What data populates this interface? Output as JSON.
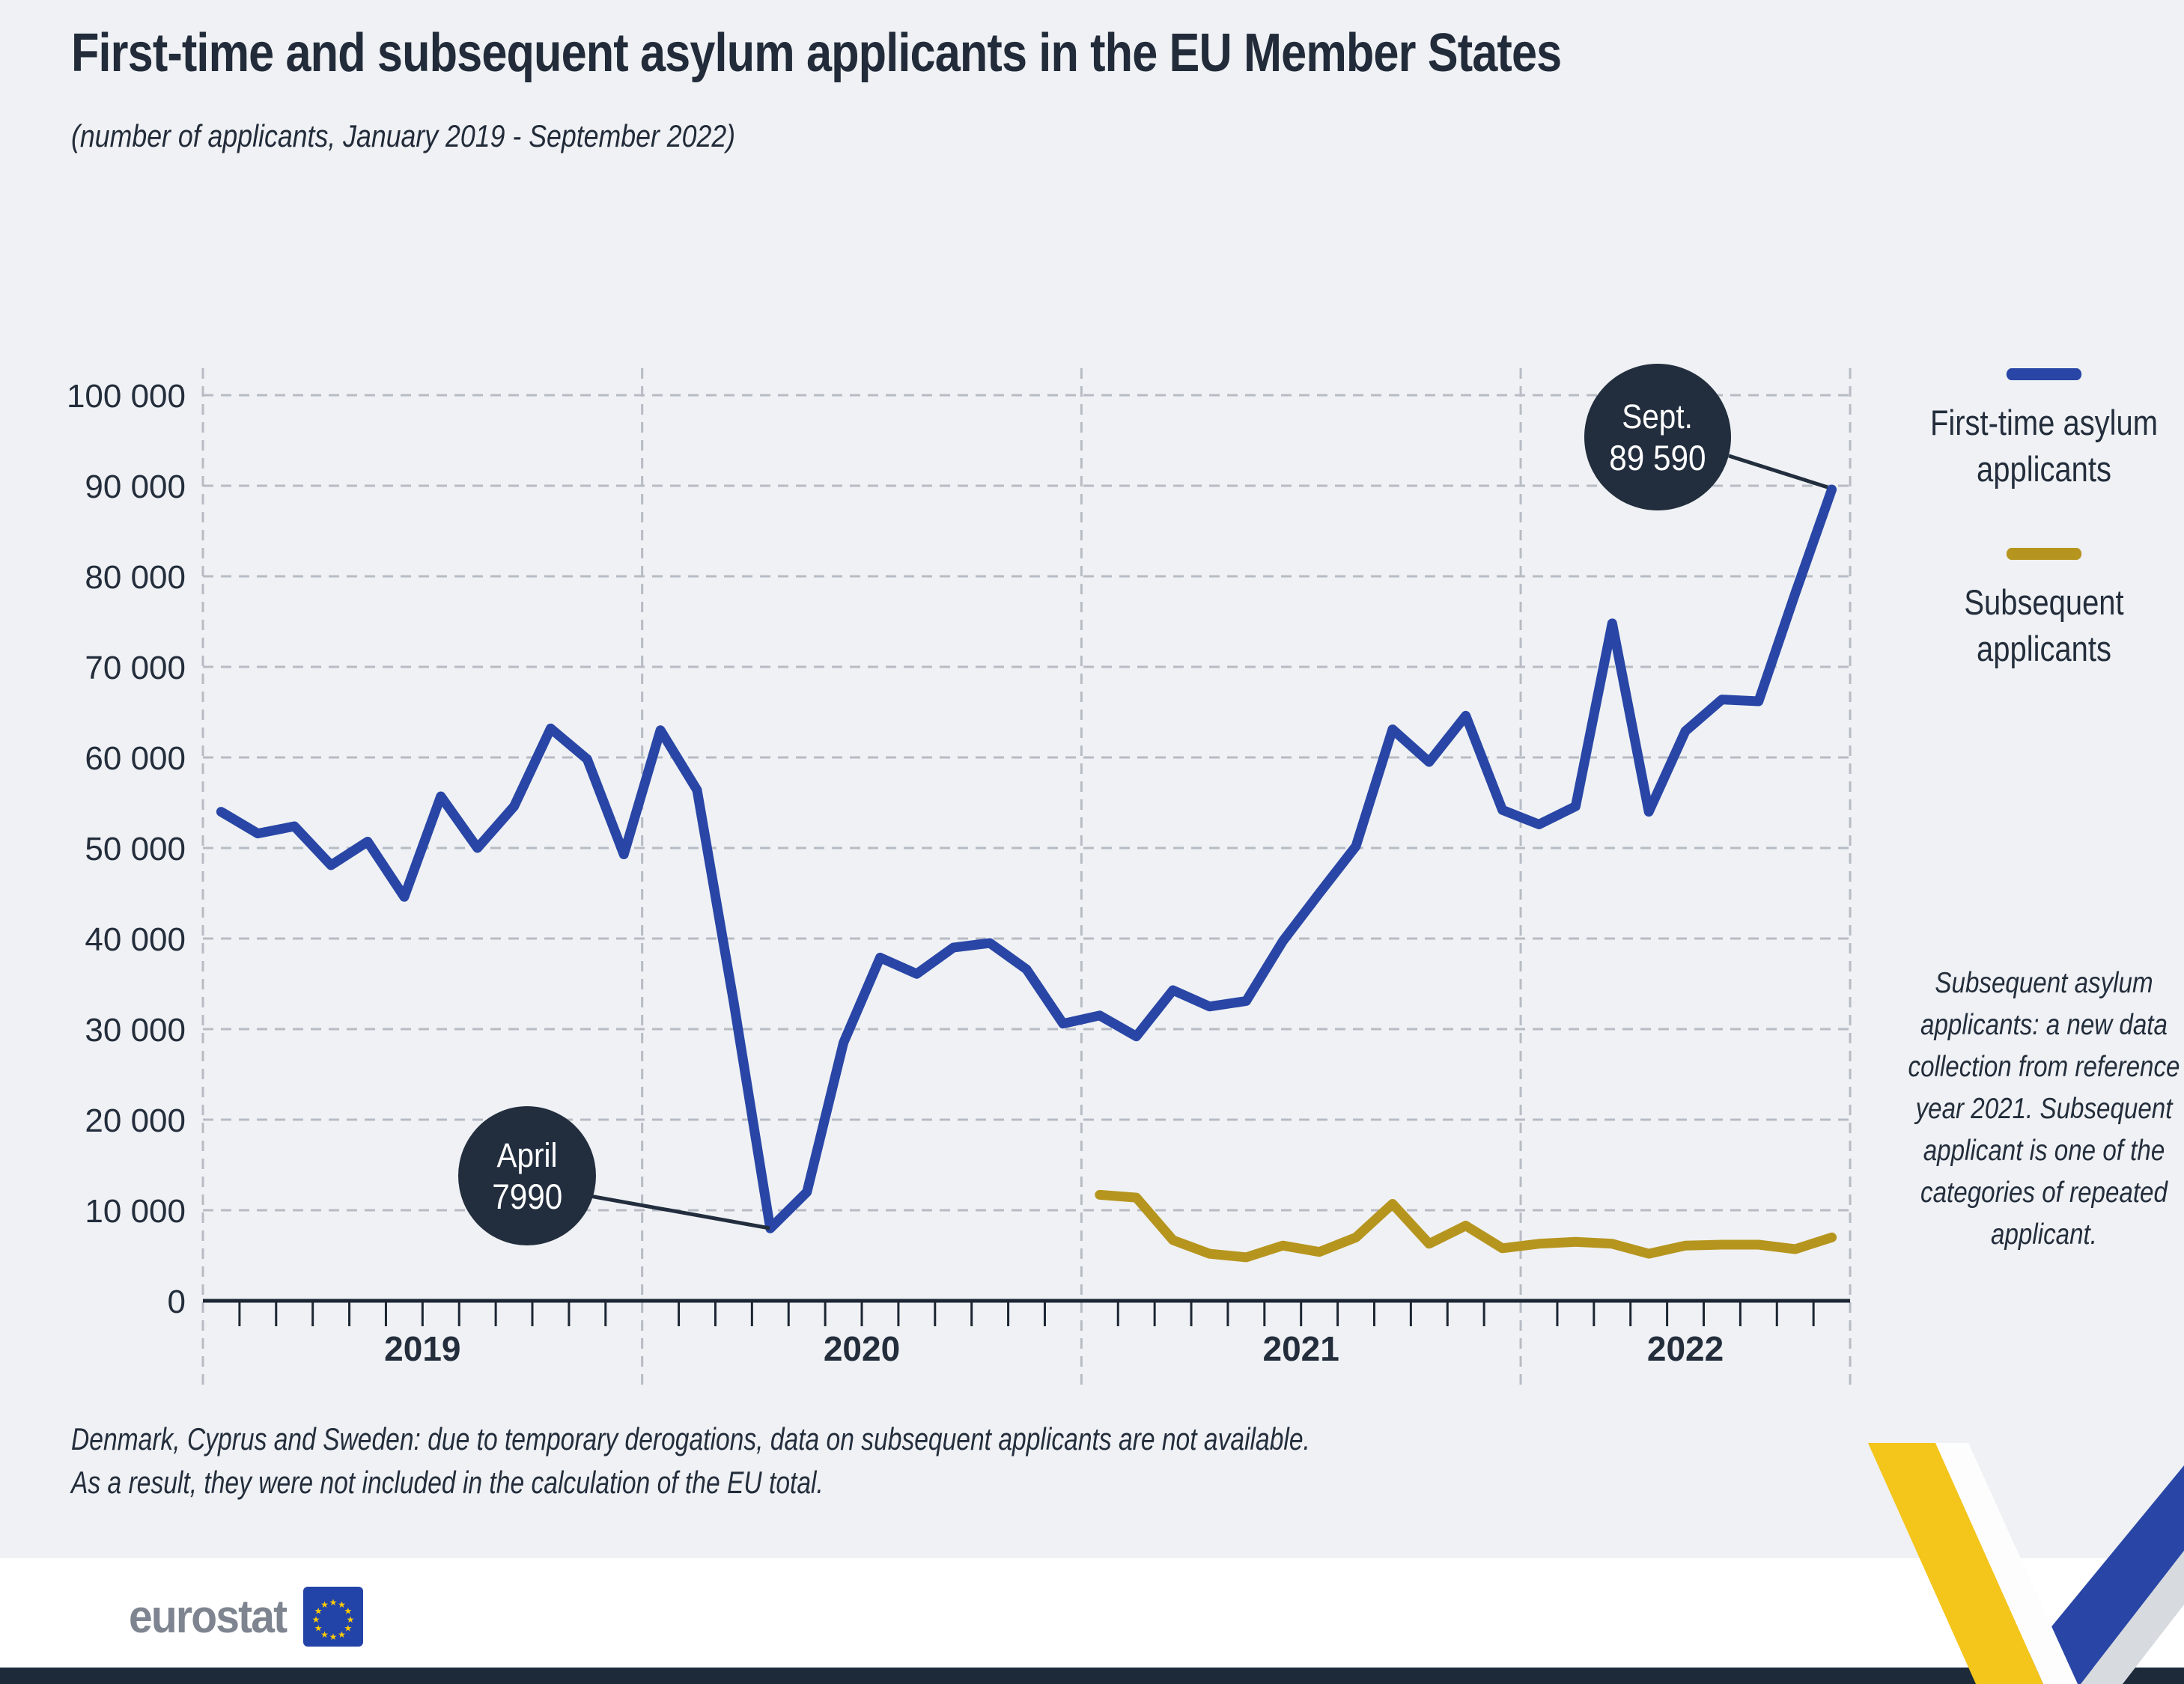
{
  "title": "First-time and subsequent asylum applicants in the EU Member States",
  "subtitle": "(number of applicants, January 2019 - September 2022)",
  "legend": [
    {
      "label": "First-time asylum applicants",
      "color": "#2946a6"
    },
    {
      "label": "Subsequent applicants",
      "color": "#b6951e"
    }
  ],
  "annotations": [
    {
      "label": "April",
      "value": "7990"
    },
    {
      "label": "Sept.",
      "value": "89 590"
    }
  ],
  "side_note": "Subsequent asylum applicants: a new data collection from reference year 2021. Subsequent applicant is one of the categories of repeated applicant.",
  "footnote_line1": "Denmark, Cyprus and Sweden: due to temporary derogations, data on subsequent applicants are not available.",
  "footnote_line2": "As a result, they were not included in the calculation of the EU total.",
  "logo_text": "eurostat",
  "colors": {
    "background": "#eff1f4",
    "first_time_line": "#2946a6",
    "subsequent_line": "#b6951e",
    "bubble": "#222e3e",
    "gridline": "#b7bbc4",
    "axis": "#1c2633",
    "text": "#232d3b",
    "footer_bar": "#1d2a3a",
    "ribbon_yellow": "#f4c51b",
    "ribbon_blue": "#2946a6",
    "eu_flag_blue": "#2243a8",
    "eu_star_yellow": "#ffcc00"
  },
  "chart_data": {
    "type": "line",
    "title": "First-time and subsequent asylum applicants in the EU Member States",
    "x_tick_labels": [
      "2019",
      "2020",
      "2021",
      "2022"
    ],
    "months_per_year": [
      12,
      12,
      12,
      9
    ],
    "y_tick_labels": [
      "0",
      "10 000",
      "20 000",
      "30 000",
      "40 000",
      "50 000",
      "60 000",
      "70 000",
      "80 000",
      "90 000",
      "100 000"
    ],
    "ylim": [
      0,
      100000
    ],
    "grid": "dashed",
    "legend_position": "right",
    "series": [
      {
        "name": "First-time asylum applicants",
        "color": "#2946a6",
        "start_month": "2019-01",
        "start_index": 0,
        "values": [
          54000,
          51600,
          52400,
          48100,
          50700,
          44600,
          55700,
          50000,
          54600,
          63200,
          59800,
          49300,
          63000,
          56400,
          33000,
          7990,
          12000,
          28500,
          37900,
          36100,
          39000,
          39500,
          36600,
          30600,
          31500,
          29200,
          34300,
          32500,
          33100,
          39700,
          45000,
          50200,
          63100,
          59500,
          64600,
          54200,
          52600,
          54600,
          74800,
          54000,
          62900,
          66400,
          66200,
          78100,
          89590
        ]
      },
      {
        "name": "Subsequent applicants",
        "color": "#b6951e",
        "start_month": "2021-01",
        "start_index": 24,
        "values": [
          11700,
          11400,
          6700,
          5200,
          4800,
          6100,
          5400,
          7000,
          10700,
          6300,
          8300,
          5800,
          6300,
          6500,
          6300,
          5200,
          6100,
          6200,
          6200,
          5700,
          7000
        ]
      }
    ]
  }
}
